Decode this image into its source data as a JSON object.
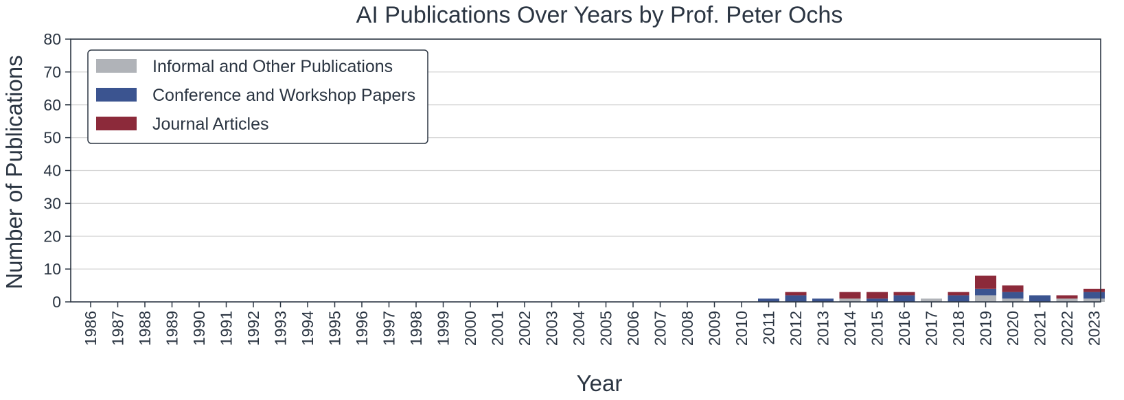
{
  "chart_data": {
    "type": "bar",
    "stacked": true,
    "title": "AI Publications Over Years by Prof. Peter Ochs",
    "xlabel": "Year",
    "ylabel": "Number of Publications",
    "ylim": [
      0,
      80
    ],
    "yticks": [
      0,
      10,
      20,
      30,
      40,
      50,
      60,
      70,
      80
    ],
    "grid": true,
    "legend_position": "top-left",
    "categories": [
      "1986",
      "1987",
      "1988",
      "1989",
      "1990",
      "1991",
      "1992",
      "1993",
      "1994",
      "1995",
      "1996",
      "1997",
      "1998",
      "1999",
      "2000",
      "2001",
      "2002",
      "2003",
      "2004",
      "2005",
      "2006",
      "2007",
      "2008",
      "2009",
      "2010",
      "2011",
      "2012",
      "2013",
      "2014",
      "2015",
      "2016",
      "2017",
      "2018",
      "2019",
      "2020",
      "2021",
      "2022",
      "2023"
    ],
    "series": [
      {
        "name": "Informal and Other Publications",
        "color": "#b0b3b8",
        "values": [
          0,
          0,
          0,
          0,
          0,
          0,
          0,
          0,
          0,
          0,
          0,
          0,
          0,
          0,
          0,
          0,
          0,
          0,
          0,
          0,
          0,
          0,
          0,
          0,
          0,
          0,
          0,
          0,
          1,
          0,
          0,
          1,
          0,
          2,
          1,
          0,
          1,
          1
        ]
      },
      {
        "name": "Conference and Workshop Papers",
        "color": "#3b5490",
        "values": [
          0,
          0,
          0,
          0,
          0,
          0,
          0,
          0,
          0,
          0,
          0,
          0,
          0,
          0,
          0,
          0,
          0,
          0,
          0,
          0,
          0,
          0,
          0,
          0,
          0,
          1,
          2,
          1,
          0,
          1,
          2,
          0,
          2,
          2,
          2,
          2,
          0,
          2
        ]
      },
      {
        "name": "Journal Articles",
        "color": "#8c2a3a",
        "values": [
          0,
          0,
          0,
          0,
          0,
          0,
          0,
          0,
          0,
          0,
          0,
          0,
          0,
          0,
          0,
          0,
          0,
          0,
          0,
          0,
          0,
          0,
          0,
          0,
          0,
          0,
          1,
          0,
          2,
          2,
          1,
          0,
          1,
          4,
          2,
          0,
          1,
          1
        ]
      }
    ]
  }
}
